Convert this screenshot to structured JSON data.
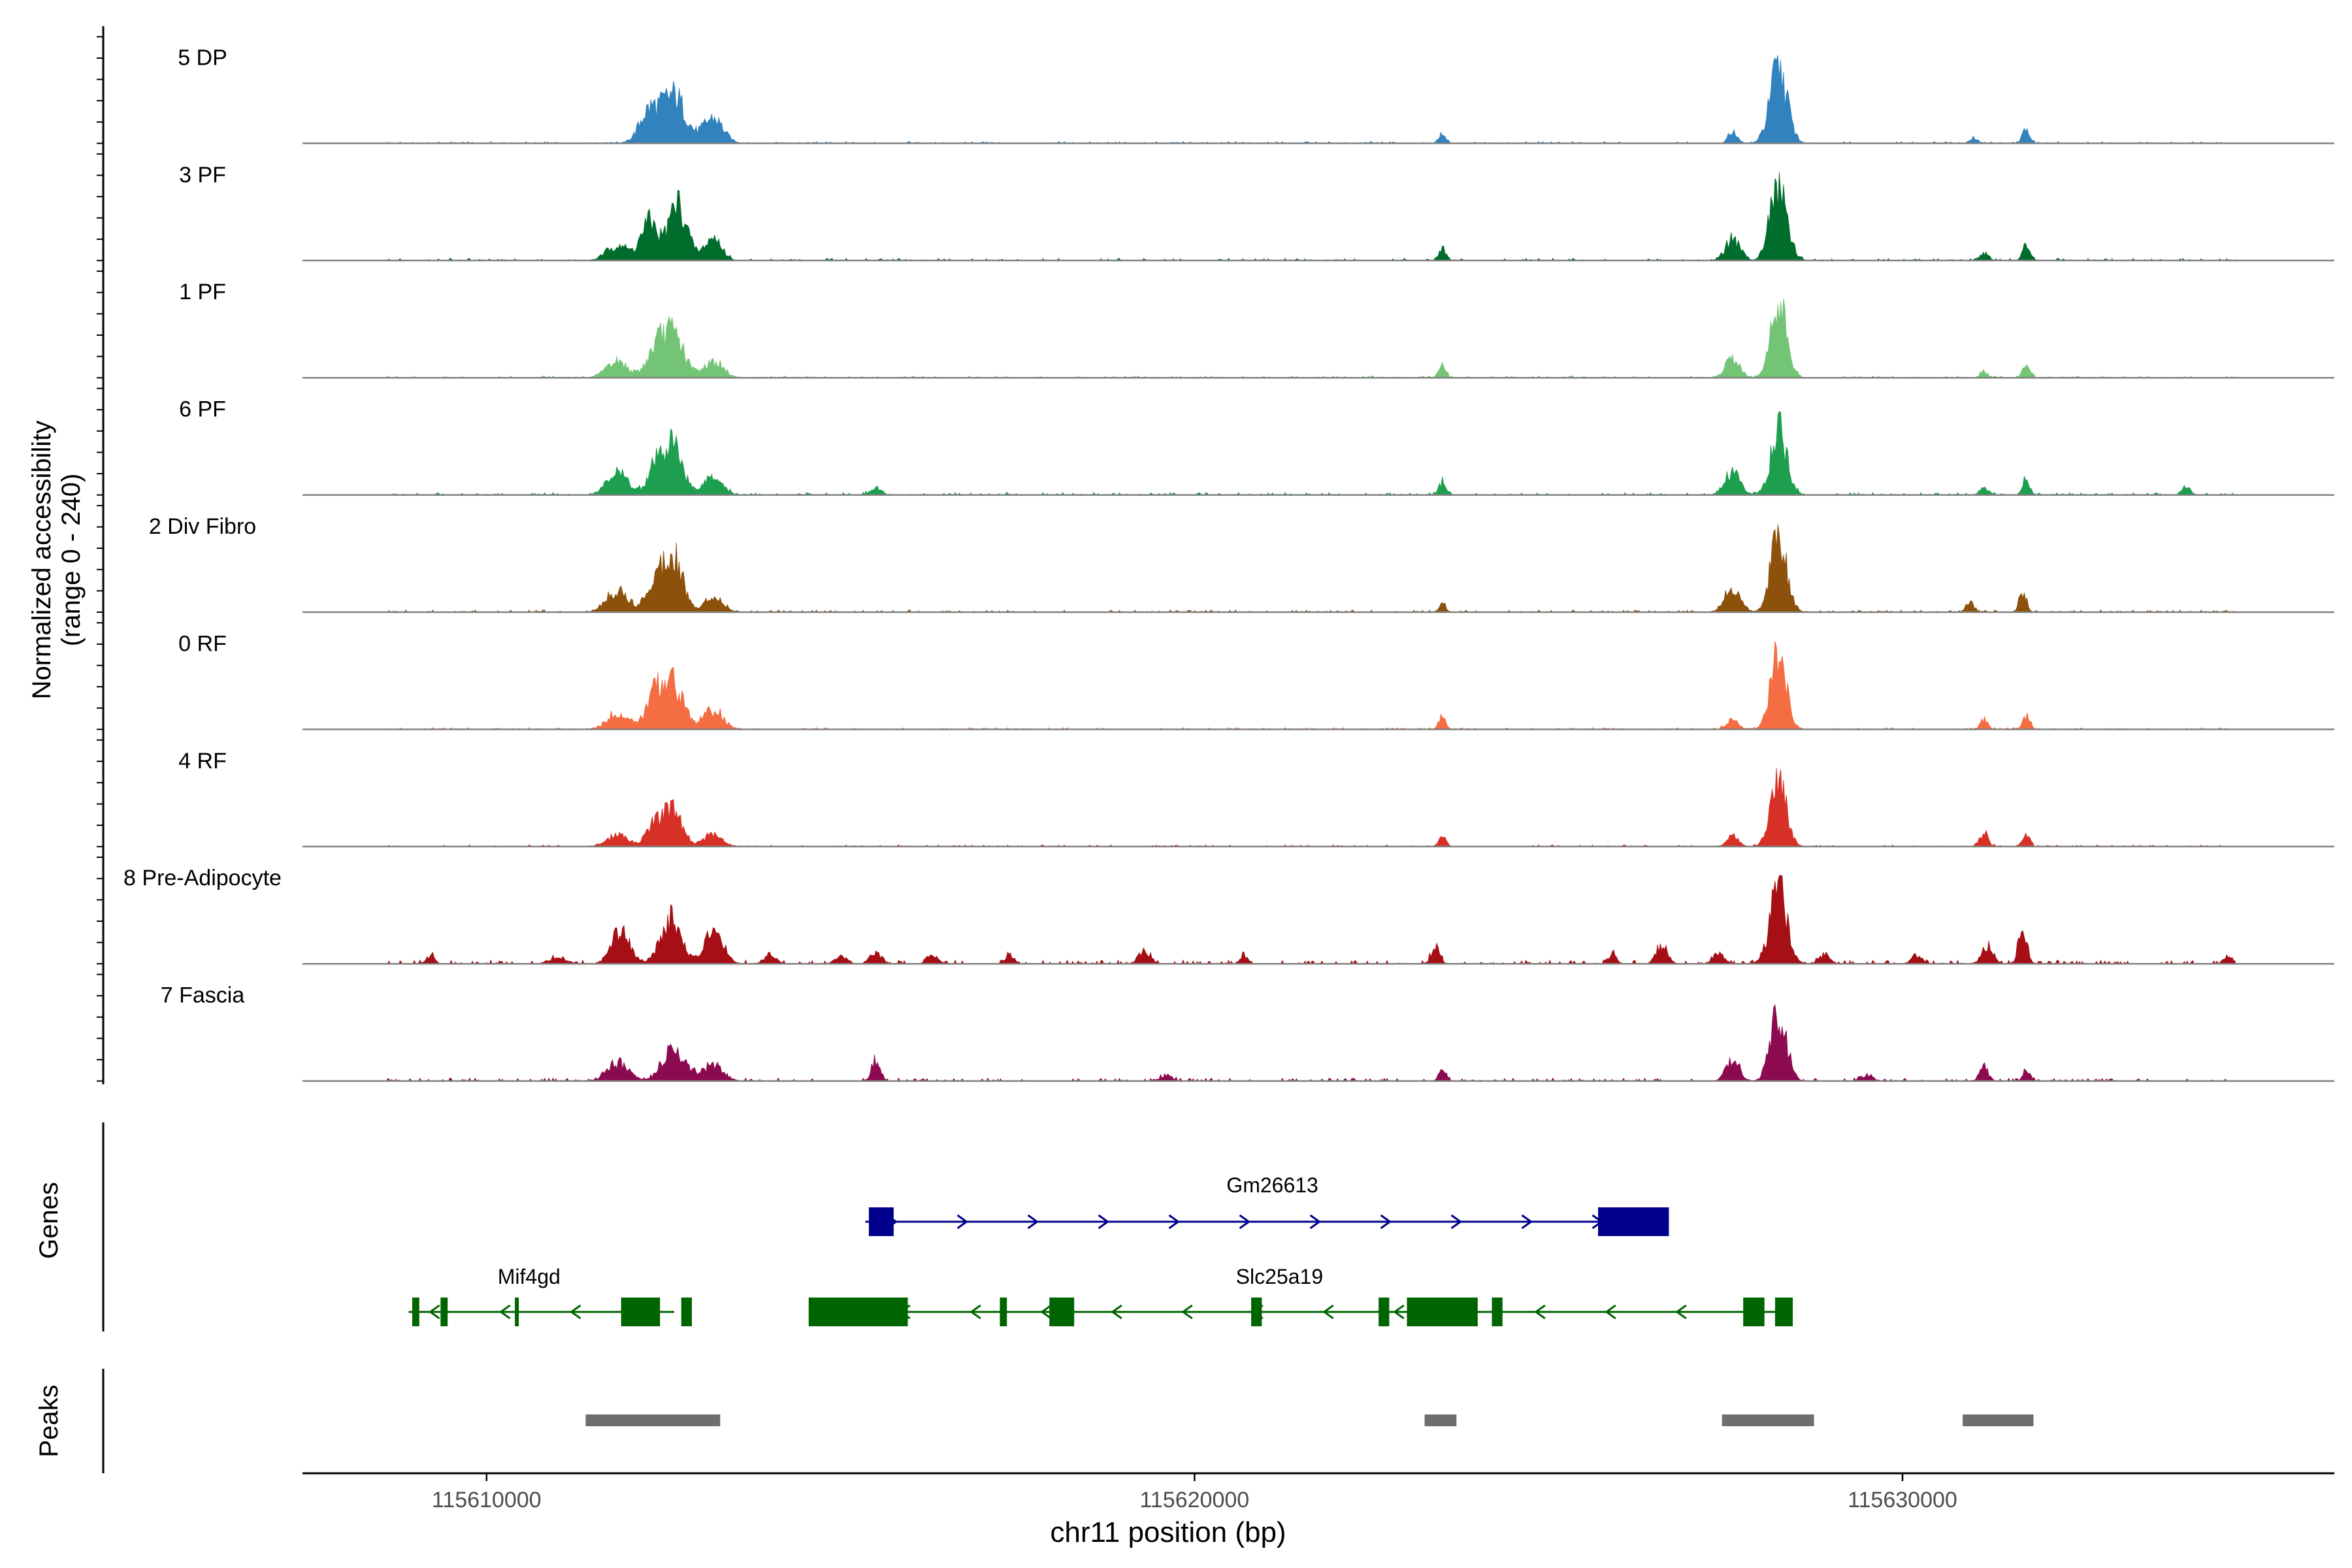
{
  "chart_data": {
    "type": "area",
    "title": "",
    "ylabel_line1": "Normalized accessibility",
    "ylabel_line2": "(range 0 - 240)",
    "xlabel": "chr11 position (bp)",
    "chromosome": "chr11",
    "xlim": [
      115607400,
      115636100
    ],
    "ylim": [
      0,
      240
    ],
    "x_ticks": [
      115610000,
      115620000,
      115630000
    ],
    "x_tick_labels": [
      "115610000",
      "115620000",
      "115630000"
    ],
    "baseline_color": "#808080",
    "tracks": [
      {
        "name": "5 DP",
        "color": "#3182BD",
        "peaks": [
          [
            115612300,
            100,
            140
          ],
          [
            115612650,
            150,
            160
          ],
          [
            115613200,
            80,
            140
          ],
          [
            115623500,
            30,
            50
          ],
          [
            115627600,
            40,
            60
          ],
          [
            115628250,
            240,
            120
          ],
          [
            115631000,
            20,
            50
          ],
          [
            115631750,
            50,
            50
          ],
          [
            115635000,
            10,
            80
          ]
        ],
        "bg": 5
      },
      {
        "name": "3 PF",
        "color": "#006D2C",
        "peaks": [
          [
            115611850,
            50,
            150
          ],
          [
            115612300,
            120,
            120
          ],
          [
            115612700,
            180,
            130
          ],
          [
            115613200,
            70,
            120
          ],
          [
            115623500,
            40,
            50
          ],
          [
            115627600,
            70,
            100
          ],
          [
            115628250,
            240,
            120
          ],
          [
            115631150,
            25,
            60
          ],
          [
            115631750,
            50,
            50
          ],
          [
            115635000,
            15,
            80
          ]
        ],
        "bg": 6
      },
      {
        "name": "1 PF",
        "color": "#74C476",
        "peaks": [
          [
            115611850,
            50,
            150
          ],
          [
            115612400,
            90,
            130
          ],
          [
            115612650,
            130,
            140
          ],
          [
            115613200,
            50,
            140
          ],
          [
            115623500,
            35,
            50
          ],
          [
            115627600,
            60,
            100
          ],
          [
            115628250,
            240,
            110
          ],
          [
            115631150,
            20,
            50
          ],
          [
            115631750,
            45,
            50
          ],
          [
            115635000,
            10,
            80
          ]
        ],
        "bg": 5
      },
      {
        "name": "6 PF",
        "color": "#1E9E4F",
        "peaks": [
          [
            115611850,
            70,
            150
          ],
          [
            115612400,
            90,
            120
          ],
          [
            115612650,
            150,
            130
          ],
          [
            115613200,
            60,
            130
          ],
          [
            115615500,
            20,
            80
          ],
          [
            115623500,
            40,
            50
          ],
          [
            115627600,
            70,
            110
          ],
          [
            115628250,
            220,
            110
          ],
          [
            115631150,
            25,
            60
          ],
          [
            115631750,
            55,
            50
          ],
          [
            115634000,
            25,
            60
          ],
          [
            115635000,
            12,
            80
          ]
        ],
        "bg": 7
      },
      {
        "name": "2 Div Fibro",
        "color": "#8C510A",
        "peaks": [
          [
            115611850,
            70,
            150
          ],
          [
            115612400,
            110,
            130
          ],
          [
            115612650,
            180,
            120
          ],
          [
            115613200,
            50,
            130
          ],
          [
            115623500,
            25,
            50
          ],
          [
            115627600,
            80,
            110
          ],
          [
            115628250,
            240,
            110
          ],
          [
            115630950,
            35,
            50
          ],
          [
            115631700,
            70,
            50
          ],
          [
            115635000,
            10,
            80
          ]
        ],
        "bg": 6
      },
      {
        "name": "0 RF",
        "color": "#F46D43",
        "peaks": [
          [
            115611850,
            50,
            150
          ],
          [
            115612400,
            110,
            140
          ],
          [
            115612650,
            130,
            140
          ],
          [
            115613200,
            60,
            140
          ],
          [
            115623500,
            40,
            50
          ],
          [
            115627600,
            30,
            80
          ],
          [
            115628250,
            240,
            110
          ],
          [
            115631150,
            35,
            50
          ],
          [
            115631750,
            45,
            50
          ],
          [
            115635000,
            10,
            80
          ]
        ],
        "bg": 5
      },
      {
        "name": "4 RF",
        "color": "#D73027",
        "peaks": [
          [
            115611850,
            35,
            150
          ],
          [
            115612400,
            80,
            130
          ],
          [
            115612650,
            100,
            120
          ],
          [
            115613200,
            40,
            130
          ],
          [
            115623500,
            35,
            50
          ],
          [
            115627600,
            35,
            80
          ],
          [
            115628250,
            200,
            110
          ],
          [
            115631150,
            40,
            60
          ],
          [
            115631750,
            40,
            50
          ],
          [
            115635000,
            10,
            80
          ]
        ],
        "bg": 5
      },
      {
        "name": "8 Pre-Adipocyte",
        "color": "#A50F15",
        "peaks": [
          [
            115608200,
            20,
            60
          ],
          [
            115609200,
            25,
            60
          ],
          [
            115611000,
            20,
            120
          ],
          [
            115611900,
            110,
            130
          ],
          [
            115612600,
            140,
            140
          ],
          [
            115613200,
            90,
            140
          ],
          [
            115614000,
            30,
            80
          ],
          [
            115615000,
            25,
            80
          ],
          [
            115615500,
            35,
            80
          ],
          [
            115616300,
            25,
            80
          ],
          [
            115617400,
            25,
            60
          ],
          [
            115619300,
            45,
            80
          ],
          [
            115620700,
            25,
            60
          ],
          [
            115623400,
            55,
            60
          ],
          [
            115625900,
            30,
            60
          ],
          [
            115626600,
            55,
            80
          ],
          [
            115627400,
            30,
            80
          ],
          [
            115628250,
            240,
            120
          ],
          [
            115628900,
            30,
            80
          ],
          [
            115630200,
            25,
            80
          ],
          [
            115631200,
            60,
            80
          ],
          [
            115631700,
            110,
            60
          ],
          [
            115634600,
            25,
            60
          ],
          [
            115635200,
            20,
            60
          ]
        ],
        "bg": 10
      },
      {
        "name": "7 Fascia",
        "color": "#8C0B50",
        "peaks": [
          [
            115611850,
            60,
            150
          ],
          [
            115612650,
            100,
            160
          ],
          [
            115613200,
            50,
            140
          ],
          [
            115615500,
            70,
            60
          ],
          [
            115619600,
            20,
            80
          ],
          [
            115623500,
            40,
            50
          ],
          [
            115627600,
            70,
            90
          ],
          [
            115628250,
            220,
            110
          ],
          [
            115629500,
            20,
            80
          ],
          [
            115631150,
            45,
            60
          ],
          [
            115631750,
            35,
            50
          ],
          [
            115635000,
            12,
            80
          ]
        ],
        "bg": 8
      }
    ],
    "genes_panel_label": "Genes",
    "peaks_panel_label": "Peaks",
    "genes": [
      {
        "name": "Gm26613",
        "strand": "+",
        "color": "#00008B",
        "start": 115615350,
        "end": 115626700,
        "label_pos": 115621100,
        "exons": [
          [
            115615400,
            115615750
          ],
          [
            115625700,
            115626700
          ]
        ]
      },
      {
        "name": "Slc25a19",
        "strand": "-",
        "color": "#006400",
        "start": 115614550,
        "end": 115628450,
        "label_pos": 115621200,
        "exons": [
          [
            115614550,
            115615950
          ],
          [
            115617250,
            115617350
          ],
          [
            115617950,
            115618300
          ],
          [
            115620800,
            115620950
          ],
          [
            115622600,
            115622750
          ],
          [
            115623000,
            115624000
          ],
          [
            115624200,
            115624350
          ],
          [
            115627750,
            115628050
          ],
          [
            115628200,
            115628450
          ]
        ]
      },
      {
        "name": "Mif4gd",
        "strand": "-",
        "color": "#006400",
        "start": 115608900,
        "end": 115612650,
        "label_pos": 115610600,
        "exons": [
          [
            115608950,
            115609050
          ],
          [
            115609350,
            115609450
          ],
          [
            115610400,
            115610450
          ],
          [
            115611900,
            115612450
          ],
          [
            115612750,
            115612900
          ]
        ]
      }
    ],
    "peak_regions": [
      [
        115611400,
        115613300
      ],
      [
        115623250,
        115623700
      ],
      [
        115627450,
        115628750
      ],
      [
        115630850,
        115631850
      ]
    ],
    "peak_color": "#6E6E6E"
  }
}
